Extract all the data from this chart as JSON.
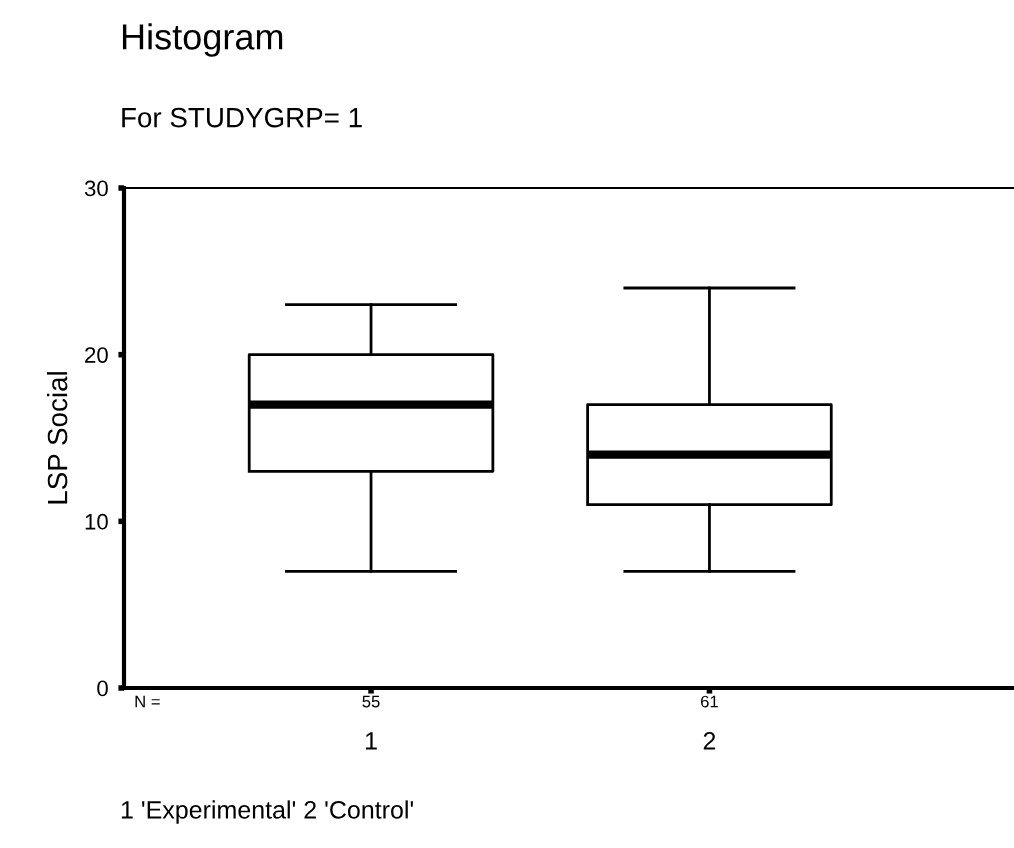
{
  "chart_data": {
    "type": "box",
    "title": "Histogram",
    "subtitle": "For STUDYGRP= 1",
    "ylabel": "LSP Social",
    "categories": [
      "1",
      "2"
    ],
    "boxes": [
      {
        "low": 7,
        "q1": 13,
        "median": 17,
        "q3": 20,
        "high": 23
      },
      {
        "low": 7,
        "q1": 11,
        "median": 14,
        "q3": 17,
        "high": 24
      }
    ],
    "ylim": [
      0,
      30
    ],
    "yticks": [
      0,
      10,
      20,
      30
    ],
    "grid": false,
    "legend": false,
    "annotations": [
      "N =",
      "55",
      "61",
      "1 'Experimental' 2 'Control'"
    ]
  }
}
